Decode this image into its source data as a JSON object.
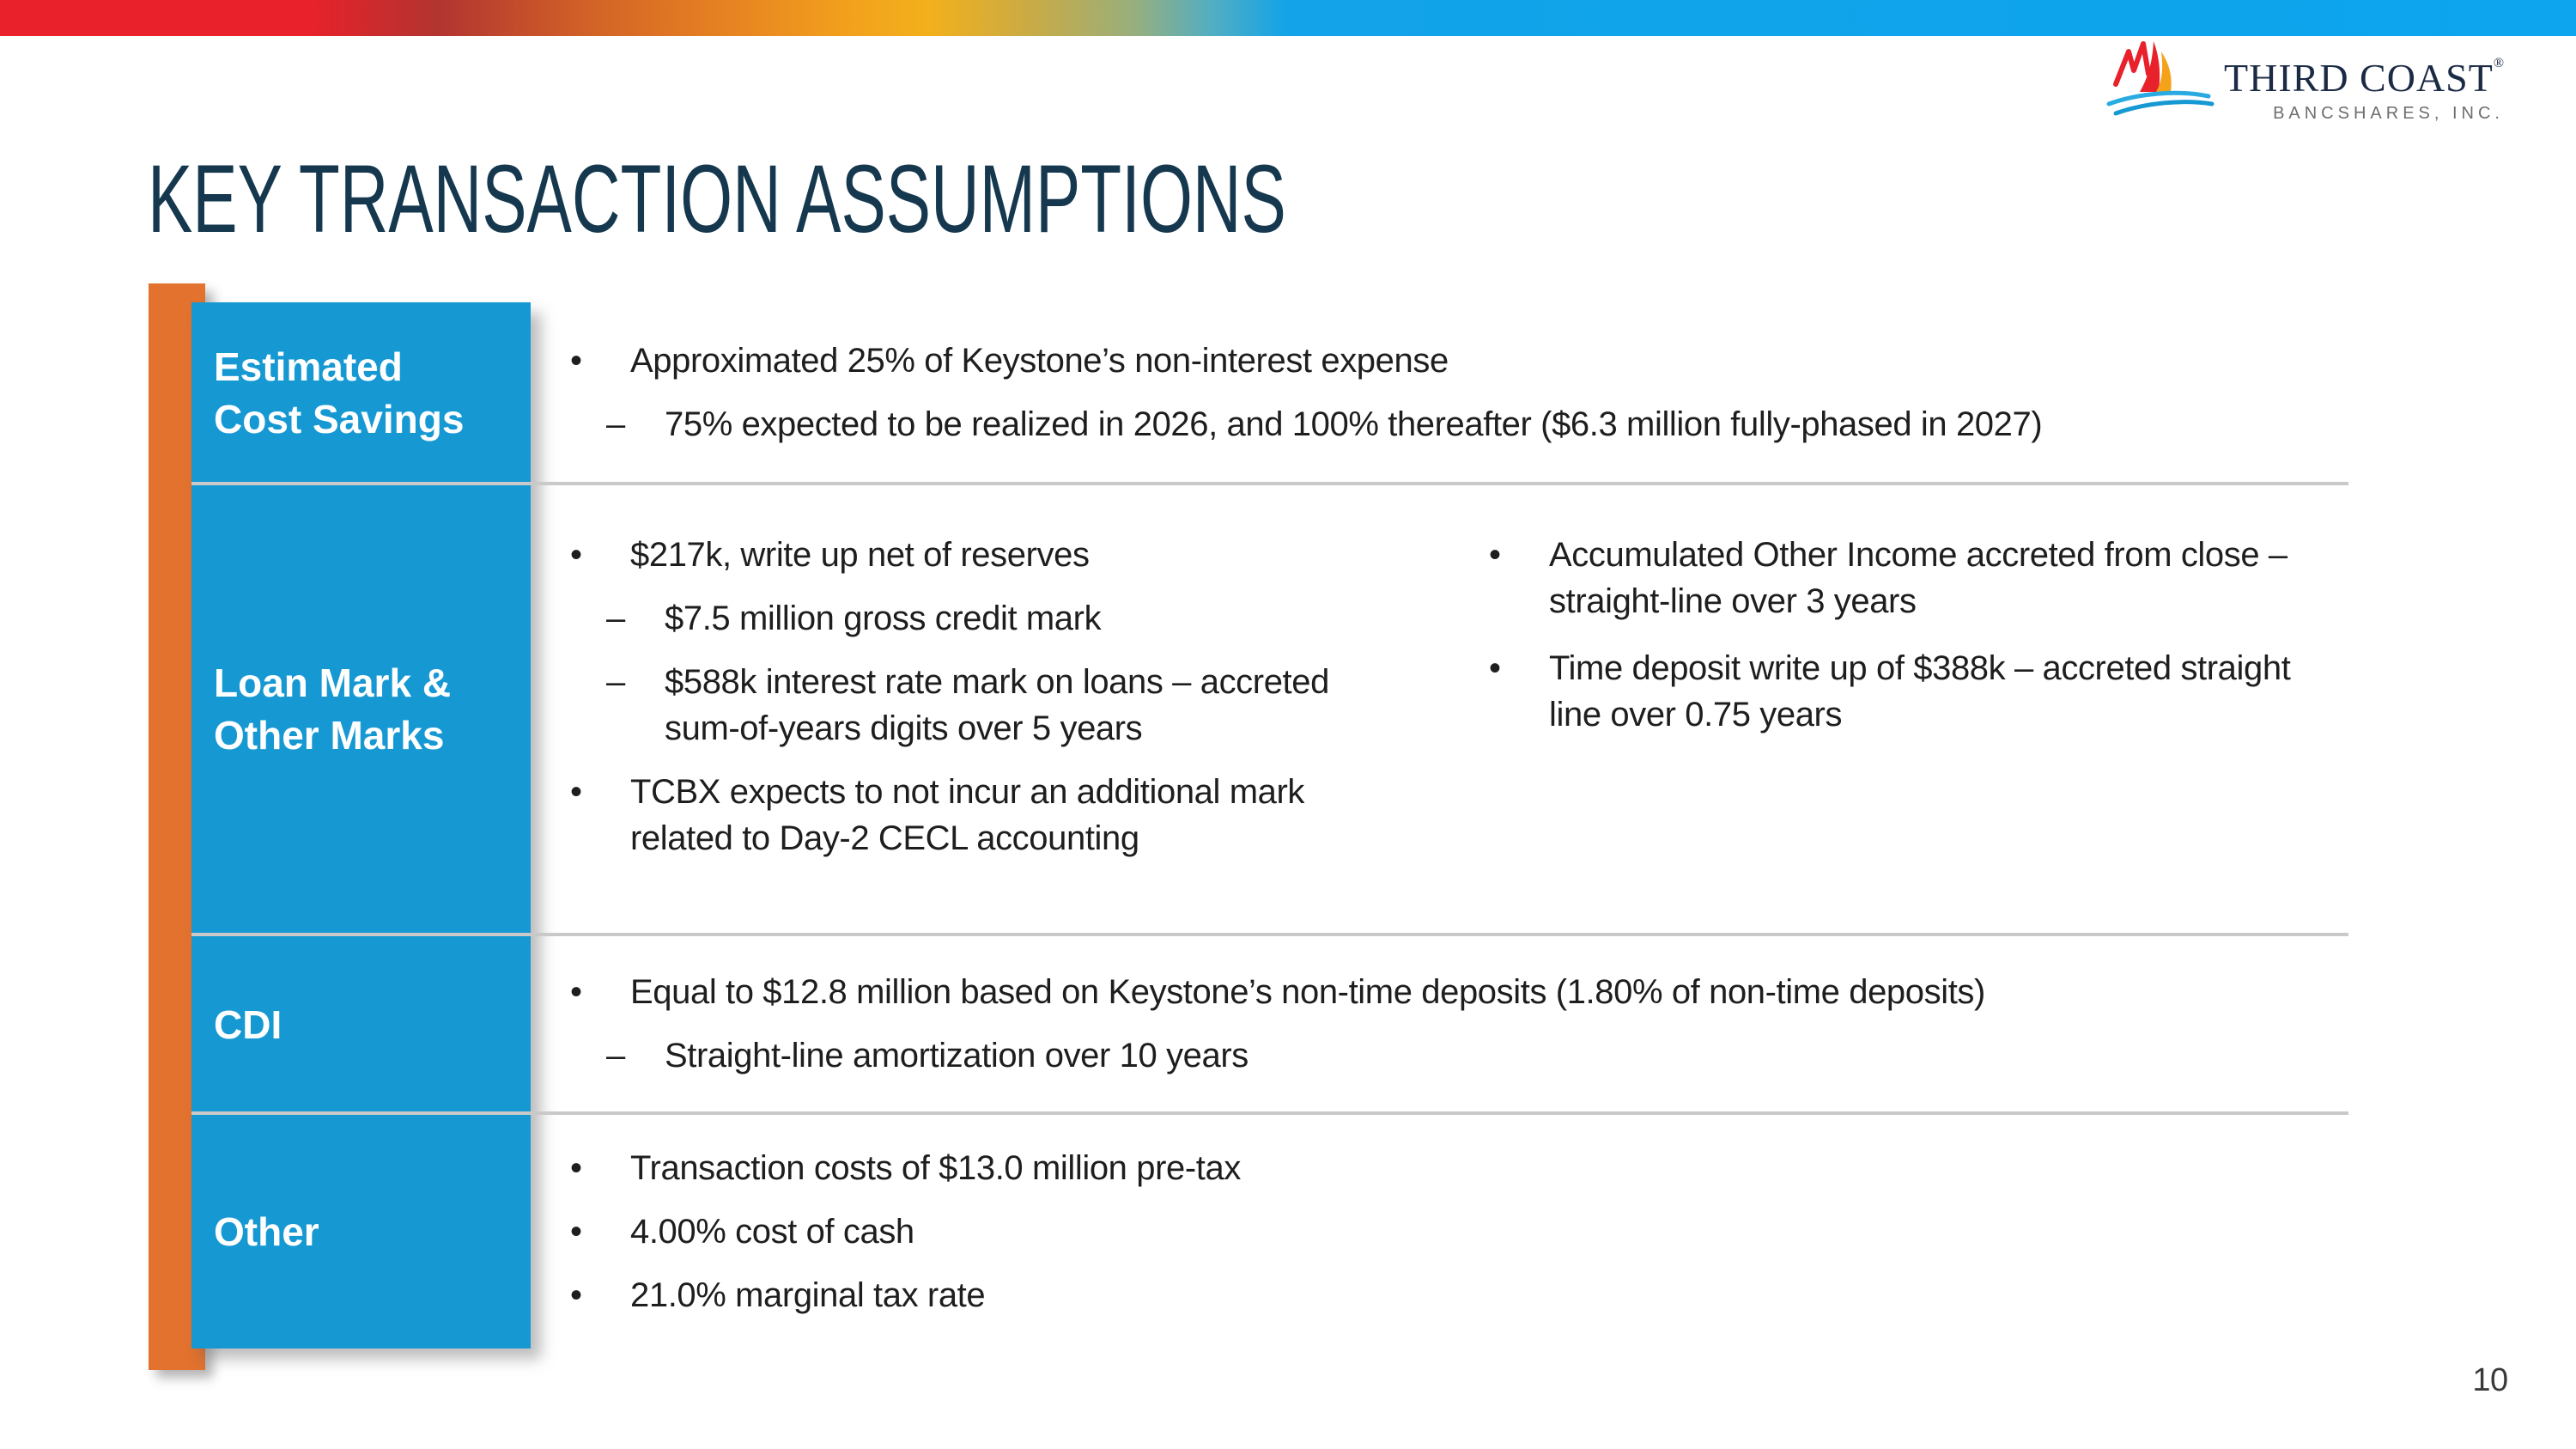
{
  "slide": {
    "title": "KEY TRANSACTION ASSUMPTIONS",
    "page_number": "10"
  },
  "logo": {
    "name": "THIRD COAST",
    "registered": "®",
    "subtitle": "BANCSHARES, INC.",
    "icon": "sailboat-waves-icon"
  },
  "colors": {
    "accent_blue": "#1699D3",
    "accent_orange": "#E2722E",
    "title_navy": "#16384E",
    "divider_gray": "#C9C9C9",
    "gradient_bar": [
      "#E8212A",
      "#E68122",
      "#F3B01B",
      "#98AF7C",
      "#12A3E8"
    ]
  },
  "table": {
    "rows": [
      {
        "label": "Estimated\nCost Savings",
        "columns": [
          [
            {
              "level": 1,
              "text": "Approximated 25% of Keystone’s non-interest expense"
            },
            {
              "level": 2,
              "text": "75% expected to be realized in 2026, and 100% thereafter ($6.3 million fully-phased in 2027)"
            }
          ]
        ]
      },
      {
        "label": "Loan Mark &\nOther Marks",
        "columns": [
          [
            {
              "level": 1,
              "text": "$217k, write up net of reserves"
            },
            {
              "level": 2,
              "text": "$7.5 million gross credit mark"
            },
            {
              "level": 2,
              "text": "$588k interest rate mark on loans – accreted\nsum-of-years digits over 5 years"
            },
            {
              "level": 1,
              "text": "TCBX expects to not incur an additional mark\nrelated to Day-2 CECL accounting"
            }
          ],
          [
            {
              "level": 1,
              "text": "Accumulated Other Income accreted from close –\nstraight-line over 3 years"
            },
            {
              "level": 1,
              "text": "Time deposit write up of $388k – accreted straight\nline over 0.75 years"
            }
          ]
        ]
      },
      {
        "label": "CDI",
        "columns": [
          [
            {
              "level": 1,
              "text": "Equal to $12.8 million based on Keystone’s non-time deposits (1.80% of non-time deposits)"
            },
            {
              "level": 2,
              "text": "Straight-line amortization over 10 years"
            }
          ]
        ]
      },
      {
        "label": "Other",
        "columns": [
          [
            {
              "level": 1,
              "text": "Transaction costs of $13.0 million pre-tax"
            },
            {
              "level": 1,
              "text": "4.00% cost of cash"
            },
            {
              "level": 1,
              "text": "21.0% marginal tax rate"
            }
          ]
        ]
      }
    ]
  }
}
